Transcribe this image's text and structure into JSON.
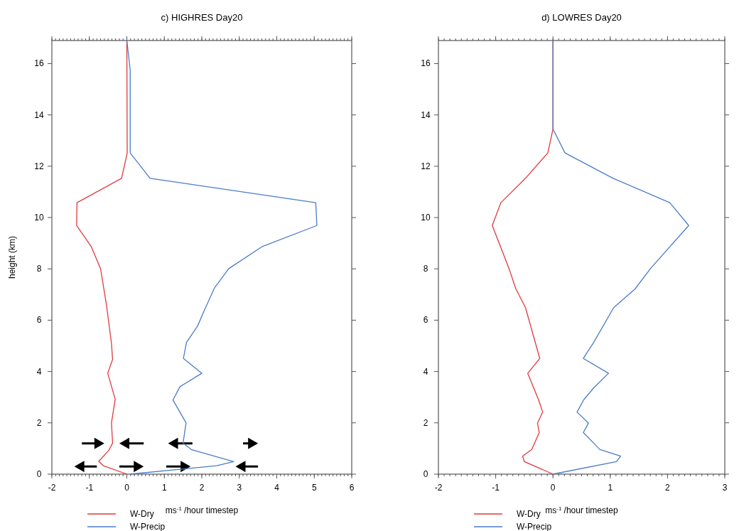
{
  "chart_data": [
    {
      "type": "line",
      "title": "c) HIGHRES Day20",
      "xlabel": "ms$^{-1}$ /hour timestep",
      "ylabel": "height (km)",
      "xlim": [
        -2,
        6
      ],
      "xticks": [
        -2,
        -1,
        0,
        1,
        2,
        3,
        4,
        5,
        6
      ],
      "ylim": [
        0,
        16.9
      ],
      "yticks": [
        0,
        2,
        4,
        6,
        8,
        10,
        12,
        14,
        16
      ],
      "legend": "bottom",
      "series": [
        {
          "name": "W-Dry",
          "color": "#e0393e",
          "x": [
            0,
            -0.63,
            -0.75,
            -0.48,
            -0.38,
            -0.41,
            -0.31,
            -0.51,
            -0.38,
            -0.41,
            -0.54,
            -0.7,
            -0.95,
            -1.34,
            -1.33,
            -0.14,
            0.01,
            0
          ],
          "values": [
            0,
            0.33,
            0.5,
            0.93,
            1.21,
            2.0,
            2.92,
            3.93,
            4.47,
            5.09,
            6.56,
            8.0,
            8.87,
            9.69,
            10.58,
            11.53,
            12.52,
            16.9
          ]
        },
        {
          "name": "W-Precip",
          "color": "#4a7cc9",
          "x": [
            0.09,
            2.4,
            2.85,
            1.73,
            1.5,
            1.58,
            1.23,
            1.42,
            2.0,
            1.51,
            1.59,
            1.89,
            2.08,
            2.34,
            2.72,
            3.6,
            5.07,
            5.04,
            0.62,
            0.09,
            0.09,
            0
          ],
          "values": [
            0,
            0.33,
            0.49,
            0.95,
            1.21,
            2.0,
            2.89,
            3.41,
            3.93,
            4.51,
            5.13,
            5.78,
            6.43,
            7.26,
            8.01,
            8.86,
            9.69,
            10.58,
            11.53,
            12.52,
            15.75,
            16.9
          ]
        }
      ]
    },
    {
      "type": "line",
      "title": "d) LOWRES Day20",
      "xlabel": "ms$^{-1}$ /hour timestep",
      "xlim": [
        -2,
        3
      ],
      "xticks": [
        -2,
        -1,
        0,
        1,
        2,
        3
      ],
      "ylim": [
        0,
        16.9
      ],
      "yticks": [
        0,
        2,
        4,
        6,
        8,
        10,
        12,
        14,
        16
      ],
      "legend": "bottom",
      "series": [
        {
          "name": "W-Dry",
          "color": "#e0393e",
          "x": [
            0,
            -0.5,
            -0.53,
            -0.37,
            -0.24,
            -0.27,
            -0.18,
            -0.25,
            -0.44,
            -0.23,
            -0.48,
            -0.65,
            -0.77,
            -1.06,
            -0.91,
            -0.48,
            -0.09,
            0,
            0
          ],
          "values": [
            0,
            0.49,
            0.7,
            0.96,
            1.62,
            1.99,
            2.42,
            2.89,
            3.93,
            4.51,
            6.49,
            7.23,
            8.03,
            9.69,
            10.58,
            11.53,
            12.52,
            13.45,
            16.9
          ]
        },
        {
          "name": "W-Precip",
          "color": "#4a7cc9",
          "x": [
            0,
            1.11,
            1.18,
            0.82,
            0.53,
            0.62,
            0.42,
            0.54,
            0.72,
            0.97,
            0.53,
            0.71,
            1.06,
            1.43,
            1.71,
            2.37,
            2.04,
            1.05,
            0.21,
            0,
            0
          ],
          "values": [
            0,
            0.49,
            0.7,
            0.96,
            1.62,
            1.99,
            2.42,
            2.91,
            3.38,
            3.93,
            4.51,
            5.13,
            6.49,
            7.21,
            8.03,
            9.69,
            10.58,
            11.53,
            12.52,
            13.45,
            16.9
          ]
        }
      ]
    }
  ]
}
